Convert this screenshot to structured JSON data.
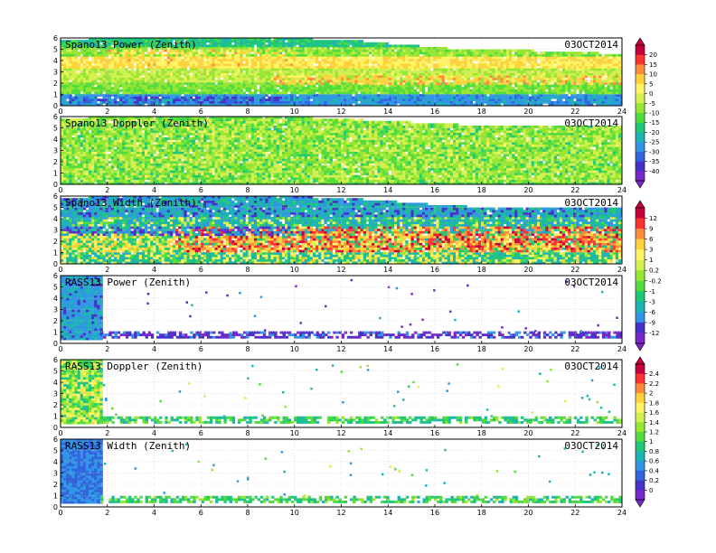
{
  "colors": {
    "background": "#ffffff",
    "frame": "#000000",
    "grid": "#c8c8c8"
  },
  "chart_data": [
    {
      "type": "heatmap",
      "title": "Spano13 Power (Zenith)",
      "date": "03OCT2014",
      "xlim": [
        0,
        24
      ],
      "ylim": [
        0,
        6
      ],
      "xticks": [
        "0",
        "2",
        "4",
        "6",
        "8",
        "10",
        "12",
        "14",
        "16",
        "18",
        "20",
        "22",
        "24"
      ],
      "yticks": [
        "0",
        "1",
        "2",
        "3",
        "4",
        "5",
        "6"
      ],
      "colorbar": {
        "labels": [
          "20",
          "15",
          "10",
          "5",
          "0",
          "-5",
          "-10",
          "-15",
          "-20",
          "-25",
          "-30",
          "-35",
          "-40"
        ],
        "colors": [
          "#c8003c",
          "#ff3232",
          "#ff8c3c",
          "#ffd23c",
          "#fff564",
          "#d2f050",
          "#96e632",
          "#50dc3c",
          "#1ec878",
          "#1eb4b4",
          "#3296e6",
          "#3264dc",
          "#4632c8",
          "#7828c8"
        ]
      },
      "coverage_top": [
        [
          0,
          5.8
        ],
        [
          9,
          6.0
        ],
        [
          13,
          5.6
        ],
        [
          17,
          4.9
        ],
        [
          20,
          4.8
        ],
        [
          24,
          4.5
        ]
      ],
      "layers": [
        {
          "value": -27,
          "y0": 0.0,
          "y1": 0.9
        },
        {
          "value": -10,
          "y0": 0.9,
          "y1": 2.0
        },
        {
          "value": -4,
          "y0": 2.0,
          "y1": 3.2
        },
        {
          "value": 5,
          "y0": 3.2,
          "y1": 4.3
        },
        {
          "value": -8,
          "y0": 4.3,
          "y1": 5.2
        },
        {
          "value": -18,
          "y0": 5.2,
          "y1": 6.0
        }
      ],
      "features": [
        {
          "value": -35,
          "x0": 0.3,
          "x1": 9.5,
          "y0": 0.1,
          "y1": 0.7
        },
        {
          "value": 8,
          "x0": 9,
          "x1": 24,
          "y0": 1.8,
          "y1": 2.6
        },
        {
          "value": 6,
          "x0": 2,
          "x1": 10,
          "y0": 3.5,
          "y1": 4.8
        }
      ]
    },
    {
      "type": "heatmap",
      "title": "Spano13 Doppler (Zenith)",
      "date": "03OCT2014",
      "xlim": [
        0,
        24
      ],
      "ylim": [
        0,
        6
      ],
      "xticks": [
        "0",
        "2",
        "4",
        "6",
        "8",
        "10",
        "12",
        "14",
        "16",
        "18",
        "20",
        "22",
        "24"
      ],
      "yticks": [
        "0",
        "1",
        "2",
        "3",
        "4",
        "5",
        "6"
      ],
      "coverage_top": [
        [
          0,
          5.8
        ],
        [
          9,
          6.0
        ],
        [
          13,
          5.6
        ],
        [
          17,
          5.2
        ],
        [
          24,
          5.0
        ]
      ],
      "layers": [
        {
          "value": -12,
          "y0": 0.0,
          "y1": 6.0
        }
      ],
      "features": [
        {
          "value": -4,
          "x0": 0,
          "x1": 24,
          "y0": 0.2,
          "y1": 5.8
        }
      ]
    },
    {
      "type": "heatmap",
      "title": "Spano13 Width (Zenith)",
      "date": "03OCT2014",
      "xlim": [
        0,
        24
      ],
      "ylim": [
        0,
        6
      ],
      "xticks": [
        "0",
        "2",
        "4",
        "6",
        "8",
        "10",
        "12",
        "14",
        "16",
        "18",
        "20",
        "22",
        "24"
      ],
      "yticks": [
        "0",
        "1",
        "2",
        "3",
        "4",
        "5",
        "6"
      ],
      "colorbar": {
        "labels": [
          "12",
          "9",
          "6",
          "3",
          "1",
          "0.2",
          "-0.2",
          "-1",
          "-3",
          "-6",
          "-9",
          "-12"
        ],
        "colors": [
          "#c8003c",
          "#ff3232",
          "#ff8c3c",
          "#ffd23c",
          "#fff564",
          "#d2f050",
          "#96e632",
          "#50dc3c",
          "#1ec878",
          "#1eb4b4",
          "#3296e6",
          "#4632c8",
          "#7828c8"
        ]
      },
      "coverage_top": [
        [
          0,
          5.8
        ],
        [
          9,
          6.0
        ],
        [
          13,
          5.6
        ],
        [
          17,
          5.0
        ],
        [
          24,
          4.8
        ]
      ],
      "layers": [
        {
          "value": -1,
          "y0": 0.0,
          "y1": 1.0
        },
        {
          "value": 1,
          "y0": 1.0,
          "y1": 2.5
        },
        {
          "value": -3,
          "y0": 2.5,
          "y1": 4.0
        },
        {
          "value": -6,
          "y0": 4.0,
          "y1": 6.0
        }
      ],
      "features": [
        {
          "value": 9,
          "x0": 4.8,
          "x1": 24,
          "y0": 1.0,
          "y1": 3.2
        },
        {
          "value": -9,
          "x0": 0,
          "x1": 10,
          "y0": 2.4,
          "y1": 3.2
        }
      ]
    },
    {
      "type": "heatmap",
      "title": "RASS13 Power (Zenith)",
      "date": "03OCT2014",
      "xlim": [
        0,
        24
      ],
      "ylim": [
        0,
        6
      ],
      "xticks": [
        "0",
        "2",
        "4",
        "6",
        "8",
        "10",
        "12",
        "14",
        "16",
        "18",
        "20",
        "22",
        "24"
      ],
      "yticks": [
        "0",
        "1",
        "2",
        "3",
        "4",
        "5",
        "6"
      ],
      "block": {
        "x0": 0,
        "x1": 1.7,
        "y0": 0.3,
        "y1": 6.0,
        "value": -7
      },
      "band": {
        "x0": 1.7,
        "x1": 24,
        "y0": 0.45,
        "y1": 0.95,
        "value": -11
      },
      "scatter_count": 40
    },
    {
      "type": "heatmap",
      "title": "RASS13 Doppler (Zenith)",
      "date": "03OCT2014",
      "xlim": [
        0,
        24
      ],
      "ylim": [
        0,
        6
      ],
      "xticks": [
        "0",
        "2",
        "4",
        "6",
        "8",
        "10",
        "12",
        "14",
        "16",
        "18",
        "20",
        "22",
        "24"
      ],
      "yticks": [
        "0",
        "1",
        "2",
        "3",
        "4",
        "5",
        "6"
      ],
      "colorbar": {
        "labels": [
          "2.4",
          "2.2",
          "2",
          "1.8",
          "1.6",
          "1.4",
          "1.2",
          "1",
          "0.8",
          "0.6",
          "0.4",
          "0.2",
          "0"
        ],
        "colors": [
          "#c8003c",
          "#ff3232",
          "#ff8c3c",
          "#ffd23c",
          "#fff564",
          "#d2f050",
          "#96e632",
          "#50dc3c",
          "#1ec878",
          "#1eb4b4",
          "#3296e6",
          "#3264dc",
          "#4632c8",
          "#7828c8"
        ]
      },
      "block": {
        "x0": 0,
        "x1": 1.7,
        "y0": 0.3,
        "y1": 6.0,
        "value": 1.3
      },
      "band": {
        "x0": 1.7,
        "x1": 24,
        "y0": 0.35,
        "y1": 0.95,
        "value": 1.0
      },
      "scatter_count": 55
    },
    {
      "type": "heatmap",
      "title": "RASS13 Width (Zenith)",
      "date": "03OCT2014",
      "xlim": [
        0,
        24
      ],
      "ylim": [
        0,
        6
      ],
      "xticks": [
        "0",
        "2",
        "4",
        "6",
        "8",
        "10",
        "12",
        "14",
        "16",
        "18",
        "20",
        "22",
        "24"
      ],
      "yticks": [
        "0",
        "1",
        "2",
        "3",
        "4",
        "5",
        "6"
      ],
      "block": {
        "x0": 0,
        "x1": 1.7,
        "y0": 0.3,
        "y1": 6.0,
        "value": 0.4
      },
      "band": {
        "x0": 1.7,
        "x1": 24,
        "y0": 0.35,
        "y1": 0.95,
        "value": 1.0
      },
      "scatter_count": 45
    }
  ]
}
